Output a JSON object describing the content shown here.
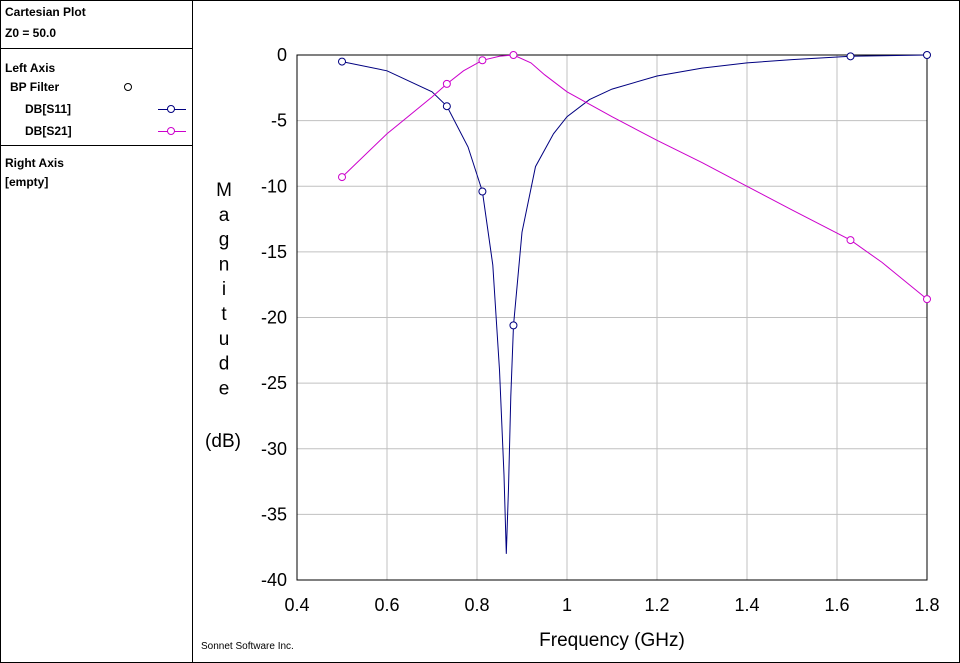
{
  "panel": {
    "title": "Cartesian Plot",
    "z0": "Z0 = 50.0",
    "left_axis_label": "Left Axis",
    "group_label": "BP Filter",
    "right_axis_label": "Right Axis",
    "right_axis_value": "[empty]"
  },
  "credit": "Sonnet Software Inc.",
  "colors": {
    "s11": "#000080",
    "s21": "#cc00cc",
    "grid": "#c0c0c0"
  },
  "chart_data": {
    "type": "line",
    "title": "",
    "xlabel": "Frequency (GHz)",
    "ylabel_chars": [
      "M",
      "a",
      "g",
      "n",
      "i",
      "t",
      "u",
      "d",
      "e"
    ],
    "ylabel_unit": "(dB)",
    "xlim": [
      0.4,
      1.8
    ],
    "ylim": [
      -40,
      0
    ],
    "xticks": [
      0.4,
      0.6,
      0.8,
      1.0,
      1.2,
      1.4,
      1.6,
      1.8
    ],
    "xtick_labels": [
      "0.4",
      "0.6",
      "0.8",
      "1",
      "1.2",
      "1.4",
      "1.6",
      "1.8"
    ],
    "yticks": [
      0,
      -5,
      -10,
      -15,
      -20,
      -25,
      -30,
      -35,
      -40
    ],
    "ytick_labels": [
      "0",
      "-5",
      "-10",
      "-15",
      "-20",
      "-25",
      "-30",
      "-35",
      "-40"
    ],
    "grid": true,
    "series": [
      {
        "name": "DB[S11]",
        "color": "#000080",
        "x": [
          0.5,
          0.6,
          0.7,
          0.733,
          0.78,
          0.812,
          0.835,
          0.85,
          0.86,
          0.865,
          0.87,
          0.875,
          0.881,
          0.9,
          0.93,
          0.97,
          1.0,
          1.05,
          1.1,
          1.2,
          1.3,
          1.4,
          1.5,
          1.63,
          1.7,
          1.8
        ],
        "y": [
          -0.5,
          -1.2,
          -2.8,
          -3.9,
          -7.0,
          -10.4,
          -16.0,
          -24.0,
          -32.0,
          -38.0,
          -33.0,
          -26.0,
          -20.6,
          -13.5,
          -8.5,
          -6.0,
          -4.7,
          -3.4,
          -2.6,
          -1.6,
          -1.0,
          -0.6,
          -0.35,
          -0.1,
          -0.05,
          0.0
        ],
        "markers_x": [
          0.5,
          0.733,
          0.812,
          0.881,
          1.63,
          1.8
        ],
        "markers_y": [
          -0.5,
          -3.9,
          -10.4,
          -20.6,
          -0.1,
          0.0
        ]
      },
      {
        "name": "DB[S21]",
        "color": "#cc00cc",
        "x": [
          0.5,
          0.6,
          0.7,
          0.733,
          0.77,
          0.812,
          0.85,
          0.881,
          0.92,
          0.95,
          1.0,
          1.1,
          1.2,
          1.3,
          1.4,
          1.5,
          1.63,
          1.7,
          1.8
        ],
        "y": [
          -9.3,
          -6.0,
          -3.2,
          -2.2,
          -1.2,
          -0.4,
          -0.1,
          0.0,
          -0.6,
          -1.5,
          -2.8,
          -4.7,
          -6.5,
          -8.2,
          -10.0,
          -11.8,
          -14.1,
          -15.8,
          -18.6
        ],
        "markers_x": [
          0.5,
          0.733,
          0.812,
          0.881,
          1.63,
          1.8
        ],
        "markers_y": [
          -9.3,
          -2.2,
          -0.4,
          0.0,
          -14.1,
          -18.6
        ]
      }
    ]
  }
}
